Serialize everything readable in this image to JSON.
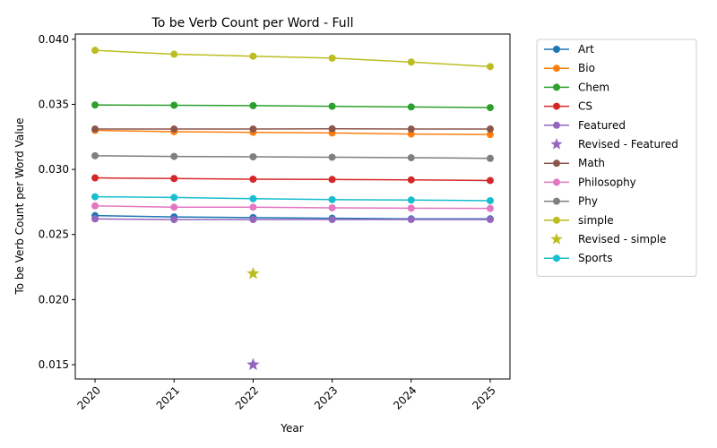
{
  "chart_data": {
    "type": "line",
    "title": "To be Verb Count per Word - Full",
    "xlabel": "Year",
    "ylabel": "To be Verb Count per Word Value",
    "x": [
      2020,
      2021,
      2022,
      2023,
      2024,
      2025
    ],
    "xlim": [
      2019.75,
      2025.25
    ],
    "ylim": [
      0.0139,
      0.0404
    ],
    "yticks": [
      "0.015",
      "0.020",
      "0.025",
      "0.030",
      "0.035",
      "0.040"
    ],
    "grid": false,
    "legend_position": "outside-right",
    "series": [
      {
        "name": "Art",
        "kind": "line",
        "color": "#1f77b4",
        "values": [
          0.02645,
          0.02635,
          0.0263,
          0.02625,
          0.0262,
          0.0262
        ]
      },
      {
        "name": "Bio",
        "kind": "line",
        "color": "#ff7f0e",
        "values": [
          0.033,
          0.0329,
          0.03285,
          0.0328,
          0.03272,
          0.03268
        ]
      },
      {
        "name": "Chem",
        "kind": "line",
        "color": "#2ca02c",
        "values": [
          0.03495,
          0.03493,
          0.0349,
          0.03485,
          0.0348,
          0.03475
        ]
      },
      {
        "name": "CS",
        "kind": "line",
        "color": "#d62728",
        "values": [
          0.02935,
          0.0293,
          0.02925,
          0.02923,
          0.0292,
          0.02915
        ]
      },
      {
        "name": "Featured",
        "kind": "line",
        "color": "#9467bd",
        "values": [
          0.0262,
          0.02615,
          0.02615,
          0.02615,
          0.02615,
          0.02615
        ]
      },
      {
        "name": "Revised - Featured",
        "kind": "star",
        "color": "#9467bd",
        "points": [
          [
            2022,
            0.015
          ]
        ]
      },
      {
        "name": "Math",
        "kind": "line",
        "color": "#8c564b",
        "values": [
          0.0331,
          0.0331,
          0.0331,
          0.03312,
          0.0331,
          0.0331
        ]
      },
      {
        "name": "Philosophy",
        "kind": "line",
        "color": "#e377c2",
        "values": [
          0.0272,
          0.0271,
          0.0271,
          0.02705,
          0.02702,
          0.027
        ]
      },
      {
        "name": "Phy",
        "kind": "line",
        "color": "#7f7f7f",
        "values": [
          0.03105,
          0.031,
          0.03097,
          0.03094,
          0.0309,
          0.03085
        ]
      },
      {
        "name": "simple",
        "kind": "line",
        "color": "#bcbd22",
        "values": [
          0.03915,
          0.03885,
          0.0387,
          0.03855,
          0.03825,
          0.0379
        ]
      },
      {
        "name": "Revised - simple",
        "kind": "star",
        "color": "#bcbd22",
        "points": [
          [
            2022,
            0.022
          ]
        ]
      },
      {
        "name": "Sports",
        "kind": "line",
        "color": "#17becf",
        "values": [
          0.0279,
          0.02785,
          0.02775,
          0.02768,
          0.02765,
          0.0276
        ]
      }
    ]
  }
}
